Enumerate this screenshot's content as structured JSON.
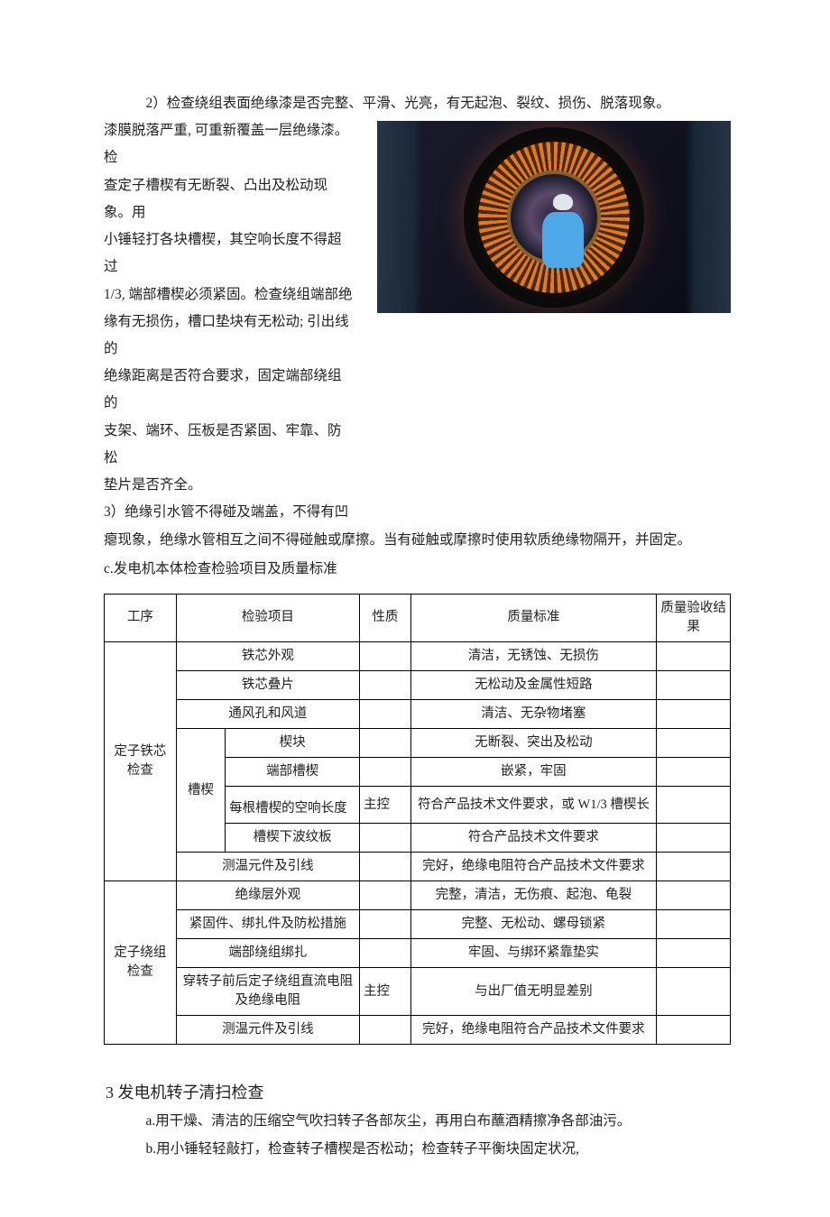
{
  "para2_first": "2）检查绕组表面绝缘漆是否完整、平滑、光亮，有无起泡、裂纹、损伤、脱落现象。",
  "para2_rest_lines": [
    "漆膜脱落严重, 可重新覆盖一层绝缘漆。检",
    "查定子槽楔有无断裂、凸出及松动现象。用",
    "小锤轻打各块槽楔，其空响长度不得超过",
    "1/3, 端部槽楔必须紧固。检查绕组端部绝",
    "缘有无损伤，槽口垫块有无松动; 引出线的",
    "绝缘距离是否符合要求，固定端部绕组的",
    "支架、端环、压板是否紧固、牢靠、防松",
    "垫片是否齐全。"
  ],
  "para3_line1": "3）绝缘引水管不得碰及端盖，不得有凹",
  "para3_rest": "瘪现象，绝缘水管相互之间不得碰触或摩擦。当有碰触或摩擦时使用软质绝缘物隔开，并固定。",
  "section_c": "c.发电机本体检查检验项目及质量标准",
  "table": {
    "headers": {
      "proc": "工序",
      "item": "检验项目",
      "nature": "性质",
      "standard": "质量标准",
      "result": "质量验收结果"
    },
    "group1": {
      "proc": "定子铁芯检查",
      "rows": [
        {
          "item": "铁芯外观",
          "nature": "",
          "std": "清洁，无锈蚀、无损伤"
        },
        {
          "item": "铁芯叠片",
          "nature": "",
          "std": "无松动及金属性短路"
        },
        {
          "item": "通风孔和风道",
          "nature": "",
          "std": "清洁、无杂物堵塞"
        }
      ],
      "sub_group": {
        "label": "槽楔",
        "rows": [
          {
            "item": "楔块",
            "nature": "",
            "std": "无断裂、突出及松动"
          },
          {
            "item": "端部槽楔",
            "nature": "",
            "std": "嵌紧，牢固"
          },
          {
            "item": "每根槽楔的空响长度",
            "nature": "主控",
            "std": "符合产品技术文件要求，或 W1/3 槽楔长"
          },
          {
            "item": "槽楔下波纹板",
            "nature": "",
            "std": "符合产品技术文件要求"
          }
        ]
      },
      "last_row": {
        "item": "测温元件及引线",
        "nature": "",
        "std": "完好，绝缘电阻符合产品技术文件要求"
      }
    },
    "group2": {
      "proc": "定子绕组检查",
      "rows": [
        {
          "item": "绝缘层外观",
          "nature": "",
          "std": "完整，清洁，无伤痕、起泡、龟裂"
        },
        {
          "item": "紧固件、绑扎件及防松措施",
          "nature": "",
          "std": "完整、无松动、螺母锁紧"
        },
        {
          "item": "端部绕组绑扎",
          "nature": "",
          "std": "牢固、与绑环紧靠垫实"
        },
        {
          "item": "穿转子前后定子绕组直流电阻及绝缘电阻",
          "nature": "主控",
          "std": "与出厂值无明显差别"
        },
        {
          "item": "测温元件及引线",
          "nature": "",
          "std": "完好，绝缘电阻符合产品技术文件要求"
        }
      ]
    }
  },
  "section3": {
    "title": "3 发电机转子清扫检查",
    "a": "a.用干燥、清洁的压缩空气吹扫转子各部灰尘，再用白布蘸酒精擦净各部油污。",
    "b": "b.用小锤轻轻敲打，检查转子槽楔是否松动；检查转子平衡块固定状况,"
  }
}
